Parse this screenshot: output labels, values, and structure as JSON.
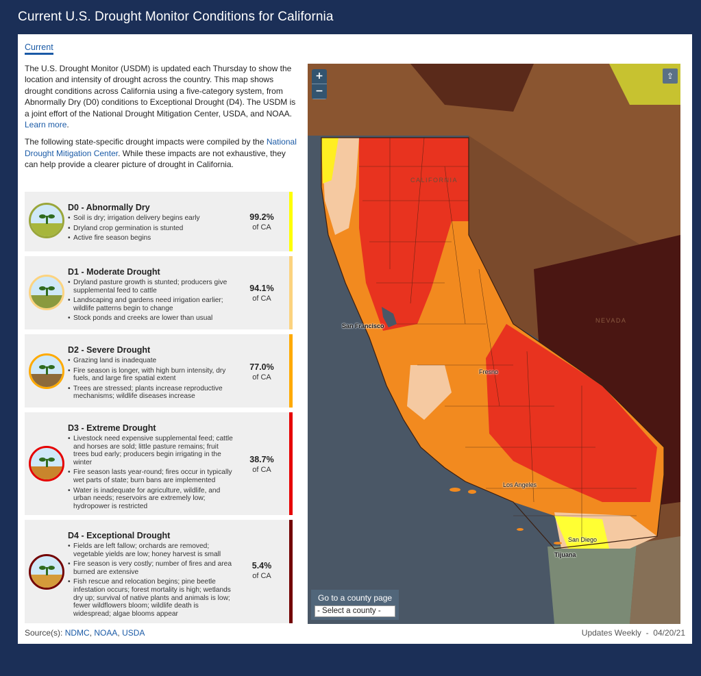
{
  "page": {
    "title": "Current U.S. Drought Monitor Conditions for California"
  },
  "tab": {
    "current_label": "Current"
  },
  "intro": {
    "p1": "The U.S. Drought Monitor (USDM) is updated each Thursday to show the location and intensity of drought across the country. This map shows drought conditions across California using a five-category system, from Abnormally Dry (D0) conditions to Exceptional Drought (D4). The USDM is a joint effort of the National Drought Mitigation Center, USDA, and NOAA.",
    "learn_more": "Learn more",
    "p2_before": "The following state-specific drought impacts were compiled by the",
    "p2_link": "National Drought Mitigation Center",
    "p2_after": ". While these impacts are not exhaustive, they can help provide a clearer picture of drought in California."
  },
  "categories": [
    {
      "title": "D0 - Abnormally Dry",
      "color": "#ffff00",
      "ground": "#a7b63c",
      "impacts": [
        "Soil is dry; irrigation delivery begins early",
        "Dryland crop germination is stunted",
        "Active fire season begins"
      ],
      "percent": "99.2%",
      "unit": "of CA"
    },
    {
      "title": "D1 - Moderate Drought",
      "color": "#fcd37f",
      "ground": "#8a9a3e",
      "impacts": [
        "Dryland pasture growth is stunted; producers give supplemental feed to cattle",
        "Landscaping and gardens need irrigation earlier; wildlife patterns begin to change",
        "Stock ponds and creeks are lower than usual"
      ],
      "percent": "94.1%",
      "unit": "of CA"
    },
    {
      "title": "D2 - Severe Drought",
      "color": "#ffaa00",
      "ground": "#8d6a3a",
      "impacts": [
        "Grazing land is inadequate",
        "Fire season is longer, with high burn intensity, dry fuels, and large fire spatial extent",
        "Trees are stressed; plants increase reproductive mechanisms; wildlife diseases increase"
      ],
      "percent": "77.0%",
      "unit": "of CA"
    },
    {
      "title": "D3 - Extreme Drought",
      "color": "#e60000",
      "ground": "#c9852c",
      "impacts": [
        "Livestock need expensive supplemental feed; cattle and horses are sold; little pasture remains; fruit trees bud early; producers begin irrigating in the winter",
        "Fire season lasts year-round; fires occur in typically wet parts of state; burn bans are implemented",
        "Water is inadequate for agriculture, wildlife, and urban needs; reservoirs are extremely low; hydropower is restricted"
      ],
      "percent": "38.7%",
      "unit": "of CA"
    },
    {
      "title": "D4 - Exceptional Drought",
      "color": "#730000",
      "ground": "#d49b3a",
      "impacts": [
        "Fields are left fallow; orchards are removed; vegetable yields are low; honey harvest is small",
        "Fire season is very costly; number of fires and area burned are extensive",
        "Fish rescue and relocation begins; pine beetle infestation occurs; forest mortality is high; wetlands dry up; survival of native plants and animals is low; fewer wildflowers bloom; wildlife death is widespread; algae blooms appear"
      ],
      "percent": "5.4%",
      "unit": "of CA"
    }
  ],
  "map": {
    "zoom_in": "+",
    "zoom_out": "−",
    "share_icon": "⇪",
    "county_label": "Go to a county page",
    "county_select": "- Select a county -",
    "labels": {
      "california": "CALIFORNIA",
      "nevada": "NEVADA",
      "san_francisco": "San Francisco",
      "los_angeles": "Los Angeles",
      "san_diego": "San Diego",
      "tijuana": "Tijuana",
      "fresno": "Fresno"
    }
  },
  "source": {
    "label": "Source(s):",
    "links": [
      "NDMC",
      "NOAA",
      "USDA"
    ]
  },
  "updates": {
    "label": "Updates Weekly",
    "separator": "-",
    "date": "04/20/21"
  }
}
